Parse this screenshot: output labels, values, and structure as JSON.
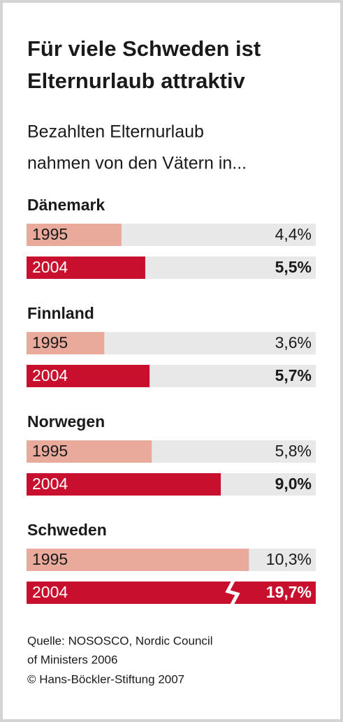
{
  "chart_data": {
    "type": "bar",
    "title": [
      "Für viele Schweden ist",
      "Elternurlaub attraktiv"
    ],
    "subtitle": [
      "Bezahlten Elternurlaub",
      "nahmen von den Vätern in..."
    ],
    "categories": [
      "Dänemark",
      "Finnland",
      "Norwegen",
      "Schweden"
    ],
    "series": [
      {
        "name": "1995",
        "color": "#e9aa9c",
        "values": [
          4.4,
          3.6,
          5.8,
          10.3
        ],
        "value_labels": [
          "4,4%",
          "3,6%",
          "5,8%",
          "10,3%"
        ]
      },
      {
        "name": "2004",
        "color": "#c8102e",
        "values": [
          5.5,
          5.7,
          9.0,
          19.7
        ],
        "value_labels": [
          "5,5%",
          "5,7%",
          "9,0%",
          "19,7%"
        ]
      }
    ],
    "xlim": [
      0,
      13.4
    ],
    "source": [
      "Quelle: NOSOSCO, Nordic Council",
      "of Ministers 2006",
      "© Hans-Böckler-Stiftung 2007"
    ]
  }
}
